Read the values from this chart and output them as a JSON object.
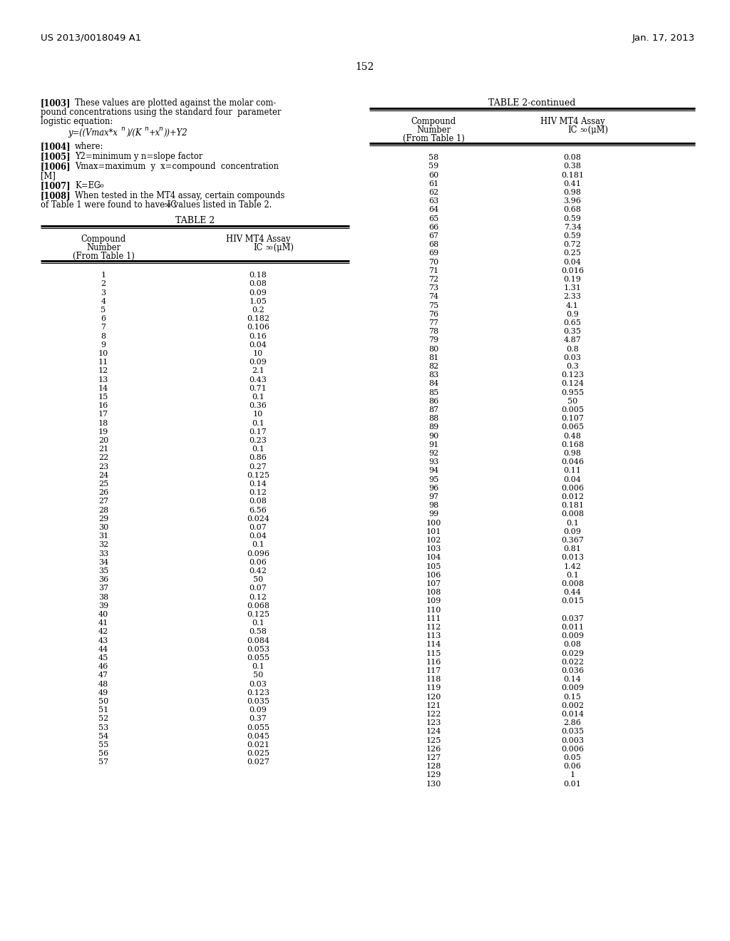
{
  "header_left": "US 2013/0018049 A1",
  "header_right": "Jan. 17, 2013",
  "page_number": "152",
  "background_color": "#ffffff",
  "text_color": "#000000",
  "table2_data": [
    [
      "1",
      "0.18"
    ],
    [
      "2",
      "0.08"
    ],
    [
      "3",
      "0.09"
    ],
    [
      "4",
      "1.05"
    ],
    [
      "5",
      "0.2"
    ],
    [
      "6",
      "0.182"
    ],
    [
      "7",
      "0.106"
    ],
    [
      "8",
      "0.16"
    ],
    [
      "9",
      "0.04"
    ],
    [
      "10",
      "10"
    ],
    [
      "11",
      "0.09"
    ],
    [
      "12",
      "2.1"
    ],
    [
      "13",
      "0.43"
    ],
    [
      "14",
      "0.71"
    ],
    [
      "15",
      "0.1"
    ],
    [
      "16",
      "0.36"
    ],
    [
      "17",
      "10"
    ],
    [
      "18",
      "0.1"
    ],
    [
      "19",
      "0.17"
    ],
    [
      "20",
      "0.23"
    ],
    [
      "21",
      "0.1"
    ],
    [
      "22",
      "0.86"
    ],
    [
      "23",
      "0.27"
    ],
    [
      "24",
      "0.125"
    ],
    [
      "25",
      "0.14"
    ],
    [
      "26",
      "0.12"
    ],
    [
      "27",
      "0.08"
    ],
    [
      "28",
      "6.56"
    ],
    [
      "29",
      "0.024"
    ],
    [
      "30",
      "0.07"
    ],
    [
      "31",
      "0.04"
    ],
    [
      "32",
      "0.1"
    ],
    [
      "33",
      "0.096"
    ],
    [
      "34",
      "0.06"
    ],
    [
      "35",
      "0.42"
    ],
    [
      "36",
      "50"
    ],
    [
      "37",
      "0.07"
    ],
    [
      "38",
      "0.12"
    ],
    [
      "39",
      "0.068"
    ],
    [
      "40",
      "0.125"
    ],
    [
      "41",
      "0.1"
    ],
    [
      "42",
      "0.58"
    ],
    [
      "43",
      "0.084"
    ],
    [
      "44",
      "0.053"
    ],
    [
      "45",
      "0.055"
    ],
    [
      "46",
      "0.1"
    ],
    [
      "47",
      "50"
    ],
    [
      "48",
      "0.03"
    ],
    [
      "49",
      "0.123"
    ],
    [
      "50",
      "0.035"
    ],
    [
      "51",
      "0.09"
    ],
    [
      "52",
      "0.37"
    ],
    [
      "53",
      "0.055"
    ],
    [
      "54",
      "0.045"
    ],
    [
      "55",
      "0.021"
    ],
    [
      "56",
      "0.025"
    ],
    [
      "57",
      "0.027"
    ]
  ],
  "table2_continued_data": [
    [
      "58",
      "0.08"
    ],
    [
      "59",
      "0.38"
    ],
    [
      "60",
      "0.181"
    ],
    [
      "61",
      "0.41"
    ],
    [
      "62",
      "0.98"
    ],
    [
      "63",
      "3.96"
    ],
    [
      "64",
      "0.68"
    ],
    [
      "65",
      "0.59"
    ],
    [
      "66",
      "7.34"
    ],
    [
      "67",
      "0.59"
    ],
    [
      "68",
      "0.72"
    ],
    [
      "69",
      "0.25"
    ],
    [
      "70",
      "0.04"
    ],
    [
      "71",
      "0.016"
    ],
    [
      "72",
      "0.19"
    ],
    [
      "73",
      "1.31"
    ],
    [
      "74",
      "2.33"
    ],
    [
      "75",
      "4.1"
    ],
    [
      "76",
      "0.9"
    ],
    [
      "77",
      "0.65"
    ],
    [
      "78",
      "0.35"
    ],
    [
      "79",
      "4.87"
    ],
    [
      "80",
      "0.8"
    ],
    [
      "81",
      "0.03"
    ],
    [
      "82",
      "0.3"
    ],
    [
      "83",
      "0.123"
    ],
    [
      "84",
      "0.124"
    ],
    [
      "85",
      "0.955"
    ],
    [
      "86",
      "50"
    ],
    [
      "87",
      "0.005"
    ],
    [
      "88",
      "0.107"
    ],
    [
      "89",
      "0.065"
    ],
    [
      "90",
      "0.48"
    ],
    [
      "91",
      "0.168"
    ],
    [
      "92",
      "0.98"
    ],
    [
      "93",
      "0.046"
    ],
    [
      "94",
      "0.11"
    ],
    [
      "95",
      "0.04"
    ],
    [
      "96",
      "0.006"
    ],
    [
      "97",
      "0.012"
    ],
    [
      "98",
      "0.181"
    ],
    [
      "99",
      "0.008"
    ],
    [
      "100",
      "0.1"
    ],
    [
      "101",
      "0.09"
    ],
    [
      "102",
      "0.367"
    ],
    [
      "103",
      "0.81"
    ],
    [
      "104",
      "0.013"
    ],
    [
      "105",
      "1.42"
    ],
    [
      "106",
      "0.1"
    ],
    [
      "107",
      "0.008"
    ],
    [
      "108",
      "0.44"
    ],
    [
      "109",
      "0.015"
    ],
    [
      "110",
      ""
    ],
    [
      "111",
      "0.037"
    ],
    [
      "112",
      "0.011"
    ],
    [
      "113",
      "0.009"
    ],
    [
      "114",
      "0.08"
    ],
    [
      "115",
      "0.029"
    ],
    [
      "116",
      "0.022"
    ],
    [
      "117",
      "0.036"
    ],
    [
      "118",
      "0.14"
    ],
    [
      "119",
      "0.009"
    ],
    [
      "120",
      "0.15"
    ],
    [
      "121",
      "0.002"
    ],
    [
      "122",
      "0.014"
    ],
    [
      "123",
      "2.86"
    ],
    [
      "124",
      "0.035"
    ],
    [
      "125",
      "0.003"
    ],
    [
      "126",
      "0.006"
    ],
    [
      "127",
      "0.05"
    ],
    [
      "128",
      "0.06"
    ],
    [
      "129",
      "1"
    ],
    [
      "130",
      "0.01"
    ]
  ]
}
